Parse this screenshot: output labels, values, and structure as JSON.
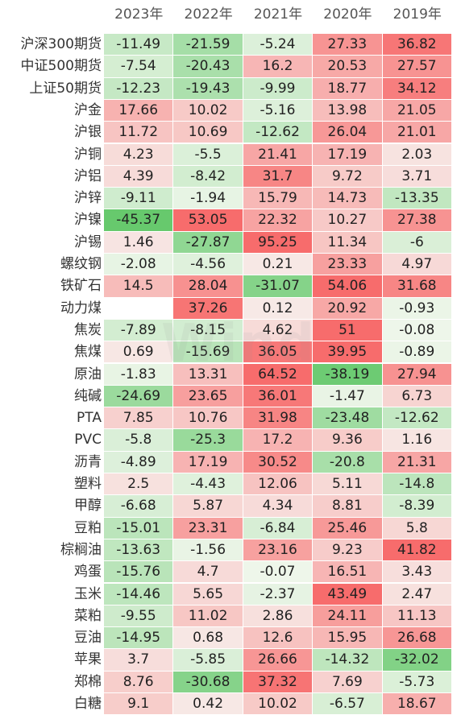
{
  "chart_data": {
    "type": "heatmap",
    "columns": [
      "2023年",
      "2022年",
      "2021年",
      "2020年",
      "2019年"
    ],
    "rows": [
      {
        "name": "沪深300期货",
        "values": [
          -11.49,
          -21.59,
          -5.24,
          27.33,
          36.82
        ]
      },
      {
        "name": "中证500期货",
        "values": [
          -7.54,
          -20.43,
          16.2,
          20.53,
          27.57
        ]
      },
      {
        "name": "上证50期货",
        "values": [
          -12.23,
          -19.43,
          -9.99,
          18.77,
          34.12
        ]
      },
      {
        "name": "沪金",
        "values": [
          17.66,
          10.02,
          -5.16,
          13.98,
          21.05
        ]
      },
      {
        "name": "沪银",
        "values": [
          11.72,
          10.69,
          -12.62,
          26.04,
          21.01
        ]
      },
      {
        "name": "沪铜",
        "values": [
          4.23,
          -5.5,
          21.41,
          17.19,
          2.03
        ]
      },
      {
        "name": "沪铝",
        "values": [
          4.39,
          -8.42,
          31.7,
          9.72,
          3.71
        ]
      },
      {
        "name": "沪锌",
        "values": [
          -9.11,
          -1.94,
          15.79,
          14.73,
          -13.35
        ]
      },
      {
        "name": "沪镍",
        "values": [
          -45.37,
          53.05,
          22.32,
          10.27,
          27.38
        ]
      },
      {
        "name": "沪锡",
        "values": [
          1.46,
          -27.87,
          95.25,
          11.34,
          -6
        ]
      },
      {
        "name": "螺纹钢",
        "values": [
          -2.08,
          -4.56,
          0.21,
          23.33,
          4.97
        ]
      },
      {
        "name": "铁矿石",
        "values": [
          14.5,
          28.04,
          -31.07,
          54.06,
          31.68
        ]
      },
      {
        "name": "动力煤",
        "values": [
          null,
          37.26,
          0.12,
          20.92,
          -0.93
        ]
      },
      {
        "name": "焦炭",
        "values": [
          -7.89,
          -8.15,
          4.62,
          51,
          -0.08
        ]
      },
      {
        "name": "焦煤",
        "values": [
          0.69,
          -15.69,
          36.05,
          39.95,
          -0.89
        ]
      },
      {
        "name": "原油",
        "values": [
          -1.83,
          13.31,
          64.52,
          -38.19,
          27.94
        ]
      },
      {
        "name": "纯碱",
        "values": [
          -24.69,
          23.65,
          36.01,
          -1.47,
          6.73
        ]
      },
      {
        "name": "PTA",
        "values": [
          7.85,
          10.76,
          31.98,
          -23.48,
          -12.62
        ]
      },
      {
        "name": "PVC",
        "values": [
          -5.8,
          -25.3,
          17.2,
          9.36,
          1.16
        ]
      },
      {
        "name": "沥青",
        "values": [
          -4.89,
          17.19,
          30.52,
          -20.8,
          21.31
        ]
      },
      {
        "name": "塑料",
        "values": [
          2.5,
          -4.43,
          12.06,
          5.11,
          -14.8
        ]
      },
      {
        "name": "甲醇",
        "values": [
          -6.68,
          5.87,
          4.34,
          8.81,
          -8.39
        ]
      },
      {
        "name": "豆粕",
        "values": [
          -15.01,
          23.31,
          -6.84,
          25.46,
          5.8
        ]
      },
      {
        "name": "棕榈油",
        "values": [
          -13.63,
          -1.56,
          23.16,
          9.23,
          41.82
        ]
      },
      {
        "name": "鸡蛋",
        "values": [
          -15.76,
          4.7,
          -0.07,
          16.51,
          3.43
        ]
      },
      {
        "name": "玉米",
        "values": [
          -14.46,
          5.65,
          -2.37,
          43.49,
          2.47
        ]
      },
      {
        "name": "菜粕",
        "values": [
          -9.55,
          11.02,
          2.86,
          24.11,
          11.13
        ]
      },
      {
        "name": "豆油",
        "values": [
          -14.95,
          0.68,
          12.6,
          15.95,
          26.68
        ]
      },
      {
        "name": "苹果",
        "values": [
          3.7,
          -5.85,
          26.66,
          -14.32,
          -32.02
        ]
      },
      {
        "name": "郑棉",
        "values": [
          8.76,
          -30.68,
          37.32,
          7.69,
          -5.73
        ]
      },
      {
        "name": "白糖",
        "values": [
          9.1,
          0.42,
          10.02,
          -6.57,
          18.67
        ]
      }
    ],
    "colors": {
      "positive_high": "#f76c6c",
      "positive_low": "#f7e9e6",
      "negative_high": "#67c96d",
      "negative_low": "#eef6ea",
      "empty": "#ffffff"
    },
    "watermark": "Wind"
  }
}
